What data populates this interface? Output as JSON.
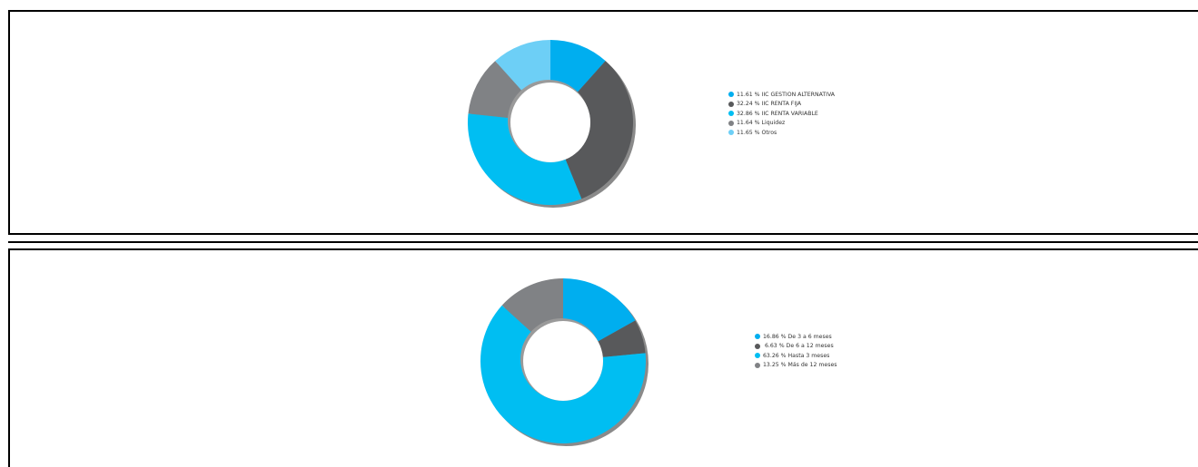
{
  "chart_data": [
    {
      "type": "pie",
      "title": "",
      "slices": [
        {
          "label": "IIC GESTION ALTERNATIVA",
          "value": 11.61,
          "legend": "11.61 % IIC GESTION ALTERNATIVA",
          "color": "#00aeef"
        },
        {
          "label": "IIC RENTA FIJA",
          "value": 32.24,
          "legend": "32.24 % IIC RENTA FIJA",
          "color": "#58595b"
        },
        {
          "label": "IIC RENTA VARIABLE",
          "value": 32.86,
          "legend": "32.86 % IIC RENTA VARIABLE",
          "color": "#00bef2"
        },
        {
          "label": "Liquidez",
          "value": 11.64,
          "legend": "11.64 % Liquidez",
          "color": "#808285"
        },
        {
          "label": "Otros",
          "value": 11.65,
          "legend": "11.65 % Otros",
          "color": "#6dcff6"
        }
      ],
      "legend_position": "right"
    },
    {
      "type": "pie",
      "title": "",
      "slices": [
        {
          "label": "De 3 a 6 meses",
          "value": 16.86,
          "legend": "16.86 % De 3 a 6 meses",
          "color": "#00aeef"
        },
        {
          "label": "De 6 a 12 meses",
          "value": 6.63,
          "legend": " 6.63 % De 6 a 12 meses",
          "color": "#58595b"
        },
        {
          "label": "Hasta 3 meses",
          "value": 63.26,
          "legend": "63.26 % Hasta 3 meses",
          "color": "#00bef2"
        },
        {
          "label": "Más de 12 meses",
          "value": 13.25,
          "legend": "13.25 % Más de 12 meses",
          "color": "#808285"
        }
      ],
      "legend_position": "right"
    }
  ]
}
